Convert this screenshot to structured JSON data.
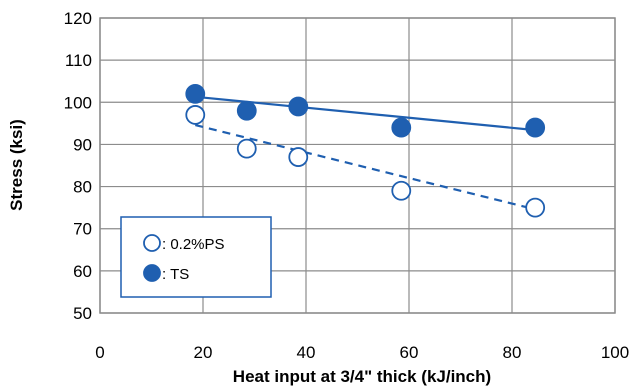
{
  "chart_data": {
    "type": "scatter",
    "title": "",
    "xlabel": "Heat input at 3/4\" thick (kJ/inch)",
    "ylabel": "Stress (ksi)",
    "xlim": [
      0,
      100
    ],
    "ylim": [
      50,
      120
    ],
    "xticks": [
      0,
      20,
      40,
      60,
      80,
      100
    ],
    "yticks": [
      50,
      60,
      70,
      80,
      90,
      100,
      110,
      120
    ],
    "grid": true,
    "legend_position": "bottom-left",
    "series": [
      {
        "name": ": 0.2%PS",
        "marker": "open-circle",
        "color": "#1f5fb0",
        "trendline": "dashed",
        "points": [
          {
            "x": 18.5,
            "y": 97
          },
          {
            "x": 28.5,
            "y": 89
          },
          {
            "x": 38.5,
            "y": 87
          },
          {
            "x": 58.5,
            "y": 79
          },
          {
            "x": 84.5,
            "y": 75
          }
        ],
        "trend": {
          "x": [
            18.5,
            84.5
          ],
          "y": [
            94.6,
            74.6
          ]
        }
      },
      {
        "name": ": TS",
        "marker": "filled-circle",
        "color": "#1f5fb0",
        "trendline": "solid",
        "points": [
          {
            "x": 18.5,
            "y": 102
          },
          {
            "x": 28.5,
            "y": 98
          },
          {
            "x": 38.5,
            "y": 99
          },
          {
            "x": 58.5,
            "y": 94
          },
          {
            "x": 84.5,
            "y": 94
          }
        ],
        "trend": {
          "x": [
            18.5,
            84.5
          ],
          "y": [
            101.3,
            93.4
          ]
        }
      }
    ]
  }
}
